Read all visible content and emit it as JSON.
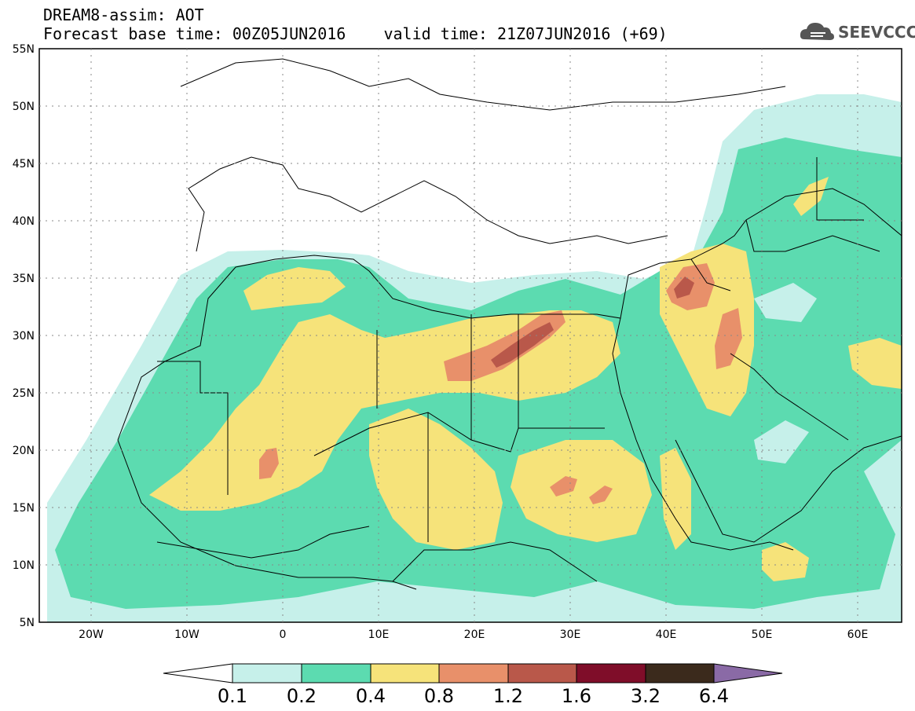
{
  "header": {
    "line1": "DREAM8-assim: AOT",
    "line2": "Forecast base time: 00Z05JUN2016    valid time: 21Z07JUN2016 (+69)"
  },
  "logo": {
    "text": "SEEVCCC",
    "icon": "cloud-icon"
  },
  "map": {
    "lon_range": [
      -25,
      65
    ],
    "lat_range": [
      5,
      55
    ],
    "lat_labels": [
      "55N",
      "50N",
      "45N",
      "40N",
      "35N",
      "30N",
      "25N",
      "20N",
      "15N",
      "10N",
      "5N"
    ],
    "lon_labels": [
      "20W",
      "10W",
      "0",
      "10E",
      "20E",
      "30E",
      "40E",
      "50E",
      "60E"
    ]
  },
  "colorbar": {
    "labels": [
      "0.1",
      "0.2",
      "0.4",
      "0.8",
      "1.2",
      "1.6",
      "3.2",
      "6.4"
    ],
    "colors": [
      "#ffffff",
      "#c6f0ea",
      "#5cdbb0",
      "#f6e37a",
      "#e8906a",
      "#b9584a",
      "#7f0d29",
      "#3b2a1c",
      "#8a6aa6"
    ]
  }
}
